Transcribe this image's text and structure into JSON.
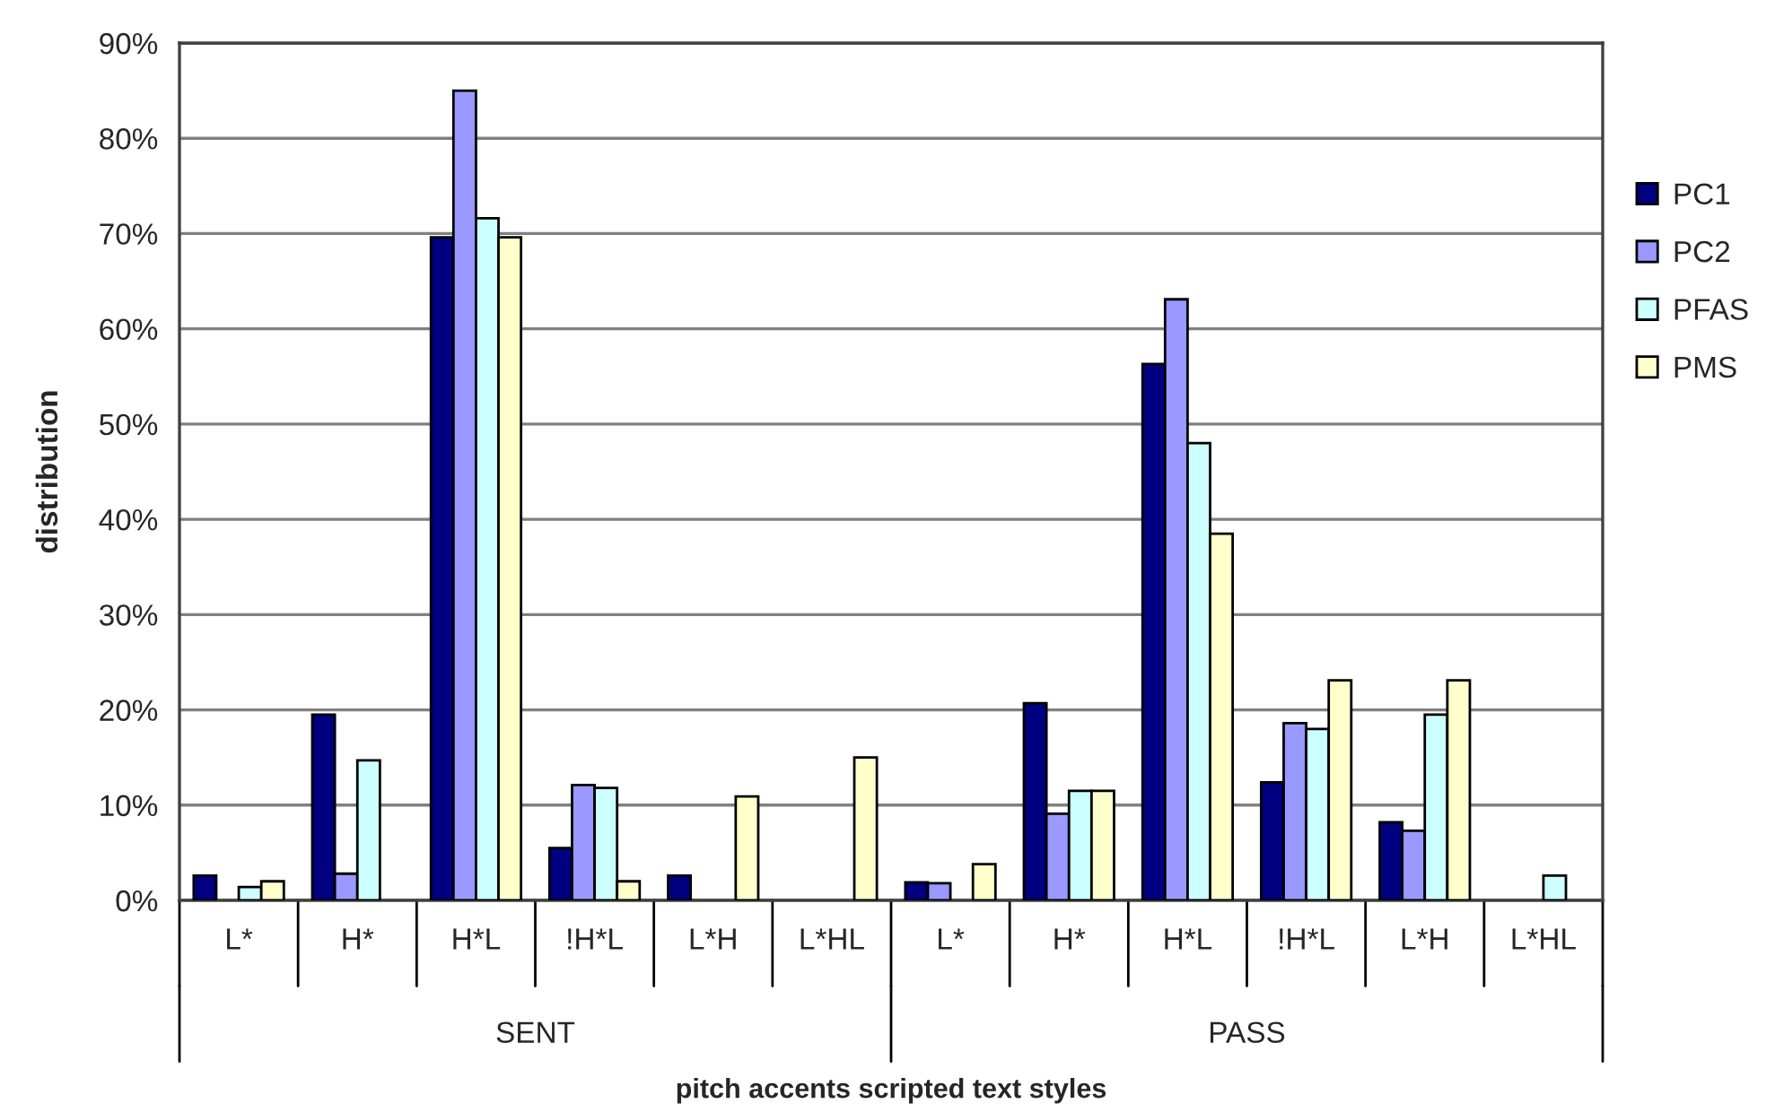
{
  "chart_data": {
    "type": "bar",
    "xlabel": "pitch accents scripted text styles",
    "ylabel": "distribution",
    "categories": [
      "L*",
      "H*",
      "H*L",
      "!H*L",
      "L*H",
      "L*HL",
      "L*",
      "H*",
      "H*L",
      "!H*L",
      "L*H",
      "L*HL"
    ],
    "series": [
      {
        "name": "PC1",
        "color": "#000080",
        "values": [
          2.6,
          19.5,
          69.6,
          5.5,
          2.6,
          null,
          1.9,
          20.7,
          56.3,
          12.4,
          8.2,
          null
        ]
      },
      {
        "name": "PC2",
        "color": "#9999ff",
        "values": [
          null,
          2.8,
          85.0,
          12.1,
          null,
          null,
          1.8,
          9.1,
          63.1,
          18.6,
          7.3,
          null
        ]
      },
      {
        "name": "PFAS",
        "color": "#ccffff",
        "values": [
          1.4,
          14.7,
          71.6,
          11.8,
          null,
          null,
          null,
          11.5,
          48.0,
          18.0,
          19.5,
          2.6
        ]
      },
      {
        "name": "PMS",
        "color": "#ffffcc",
        "values": [
          2.0,
          null,
          69.6,
          2.0,
          10.9,
          15.0,
          3.8,
          11.5,
          38.5,
          23.1,
          23.1,
          null
        ]
      }
    ],
    "annotations": [
      "SENT",
      "PASS"
    ],
    "ylim": [
      0,
      90
    ],
    "yticks": [
      {
        "value": 0,
        "label": "0%"
      },
      {
        "value": 10,
        "label": "10%"
      },
      {
        "value": 20,
        "label": "20%"
      },
      {
        "value": 30,
        "label": "30%"
      },
      {
        "value": 40,
        "label": "40%"
      },
      {
        "value": 50,
        "label": "50%"
      },
      {
        "value": 60,
        "label": "60%"
      },
      {
        "value": 70,
        "label": "70%"
      },
      {
        "value": 80,
        "label": "80%"
      },
      {
        "value": 90,
        "label": "90%"
      }
    ],
    "grid": "y",
    "legend": "right"
  }
}
